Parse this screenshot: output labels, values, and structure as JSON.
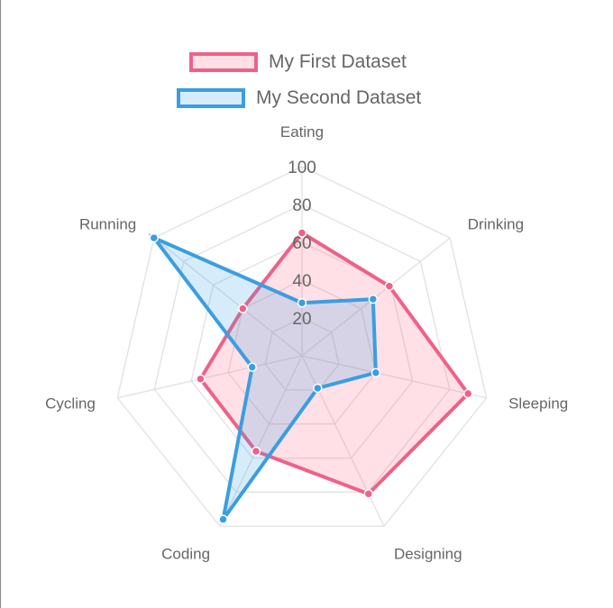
{
  "chart_data": {
    "type": "radar",
    "title": "",
    "labels": [
      "Eating",
      "Drinking",
      "Sleeping",
      "Designing",
      "Coding",
      "Cycling",
      "Running"
    ],
    "ticks": [
      "20",
      "40",
      "60",
      "80",
      "100"
    ],
    "rlim": [
      0,
      100
    ],
    "grid": true,
    "legend_position": "top",
    "series": [
      {
        "name": "My First Dataset",
        "values": [
          65,
          59,
          90,
          81,
          56,
          55,
          40
        ],
        "color": "#ef6188",
        "fill": "rgba(255,99,132,0.2)"
      },
      {
        "name": "My Second Dataset",
        "values": [
          28,
          48,
          40,
          19,
          96,
          27,
          100
        ],
        "color": "#3b9ee0",
        "fill": "rgba(54,162,235,0.2)"
      }
    ]
  }
}
